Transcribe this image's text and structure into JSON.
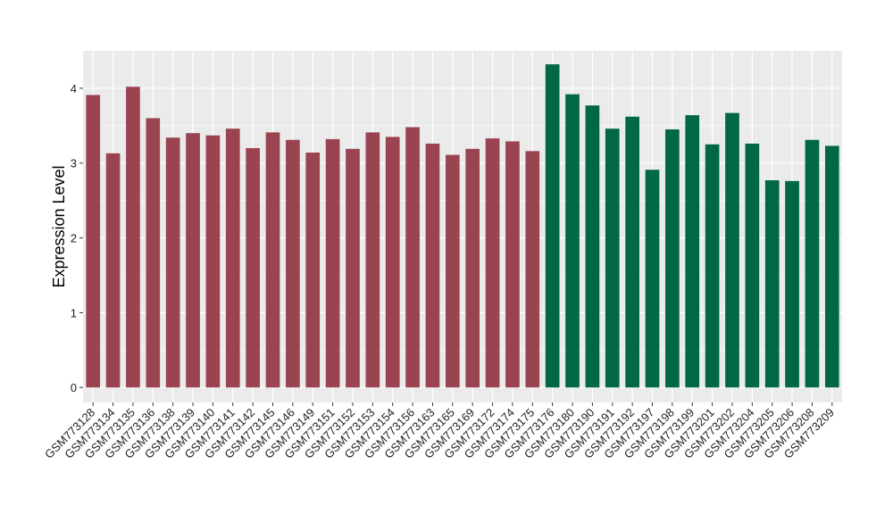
{
  "chart_data": {
    "type": "bar",
    "title": "",
    "xlabel": "",
    "ylabel": "Expression Level",
    "ylim": [
      -0.2,
      4.5
    ],
    "yticks": [
      0,
      1,
      2,
      3,
      4
    ],
    "grid": true,
    "legend": "none",
    "colors": {
      "panel_background": "#ebebeb",
      "grid": "#ffffff",
      "group_1": "#9a4452",
      "group_2": "#006847"
    },
    "categories": [
      "GSM773128",
      "GSM773134",
      "GSM773135",
      "GSM773136",
      "GSM773138",
      "GSM773139",
      "GSM773140",
      "GSM773141",
      "GSM773142",
      "GSM773145",
      "GSM773146",
      "GSM773149",
      "GSM773151",
      "GSM773152",
      "GSM773153",
      "GSM773154",
      "GSM773156",
      "GSM773163",
      "GSM773165",
      "GSM773169",
      "GSM773172",
      "GSM773174",
      "GSM773175",
      "GSM773176",
      "GSM773180",
      "GSM773190",
      "GSM773191",
      "GSM773192",
      "GSM773197",
      "GSM773198",
      "GSM773199",
      "GSM773201",
      "GSM773202",
      "GSM773204",
      "GSM773205",
      "GSM773206",
      "GSM773208",
      "GSM773209"
    ],
    "values": [
      3.91,
      3.13,
      4.02,
      3.6,
      3.34,
      3.4,
      3.37,
      3.46,
      3.2,
      3.41,
      3.31,
      3.14,
      3.32,
      3.19,
      3.41,
      3.35,
      3.48,
      3.26,
      3.11,
      3.19,
      3.33,
      3.29,
      3.16,
      4.32,
      3.92,
      3.77,
      3.46,
      3.62,
      2.91,
      3.45,
      3.64,
      3.25,
      3.67,
      3.26,
      2.77,
      2.76,
      3.31,
      3.23
    ],
    "groups": [
      1,
      1,
      1,
      1,
      1,
      1,
      1,
      1,
      1,
      1,
      1,
      1,
      1,
      1,
      1,
      1,
      1,
      1,
      1,
      1,
      1,
      1,
      1,
      2,
      2,
      2,
      2,
      2,
      2,
      2,
      2,
      2,
      2,
      2,
      2,
      2,
      2,
      2
    ]
  }
}
